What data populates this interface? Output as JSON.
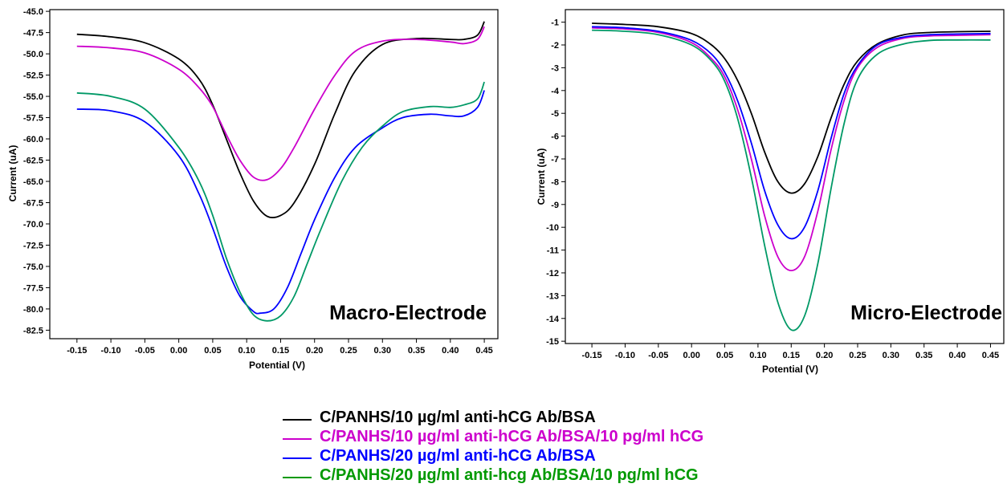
{
  "colors": {
    "c1": "#000000",
    "c2": "#cc00cc",
    "c3": "#0000ff",
    "c4": "#009966",
    "c4_legend": "#009900"
  },
  "chart_data": [
    {
      "type": "line",
      "inset_label": "Macro-Electrode",
      "xlabel": "Potential (V)",
      "ylabel": "Current (uA)",
      "xlim": [
        -0.19,
        0.47
      ],
      "ylim": [
        -83.5,
        -44.8
      ],
      "xticks": [
        -0.15,
        -0.1,
        -0.05,
        0.0,
        0.05,
        0.1,
        0.15,
        0.2,
        0.25,
        0.3,
        0.35,
        0.4,
        0.45
      ],
      "xtick_labels": [
        "-0.15",
        "-0.10",
        "-0.05",
        "0.00",
        "0.05",
        "0.10",
        "0.15",
        "0.20",
        "0.25",
        "0.30",
        "0.35",
        "0.40",
        "0.45"
      ],
      "yticks": [
        -45.0,
        -47.5,
        -50.0,
        -52.5,
        -55.0,
        -57.5,
        -60.0,
        -62.5,
        -65.0,
        -67.5,
        -70.0,
        -72.5,
        -75.0,
        -77.5,
        -80.0,
        -82.5
      ],
      "ytick_labels": [
        "-45.0",
        "-47.5",
        "-50.0",
        "-52.5",
        "-55.0",
        "-57.5",
        "-60.0",
        "-62.5",
        "-65.0",
        "-67.5",
        "-70.0",
        "-72.5",
        "-75.0",
        "-77.5",
        "-80.0",
        "-82.5"
      ],
      "series": [
        {
          "color_key": "c1",
          "x": [
            -0.15,
            -0.1,
            -0.05,
            0.0,
            0.03,
            0.05,
            0.07,
            0.09,
            0.11,
            0.13,
            0.15,
            0.17,
            0.2,
            0.23,
            0.26,
            0.3,
            0.35,
            0.4,
            0.42,
            0.44,
            0.45
          ],
          "y": [
            -47.7,
            -48.0,
            -48.7,
            -50.6,
            -53.0,
            -56.0,
            -60.0,
            -64.0,
            -67.3,
            -69.1,
            -69.0,
            -67.5,
            -63.0,
            -57.0,
            -52.0,
            -48.9,
            -48.2,
            -48.3,
            -48.3,
            -47.8,
            -46.2
          ]
        },
        {
          "color_key": "c2",
          "x": [
            -0.15,
            -0.1,
            -0.05,
            0.0,
            0.03,
            0.05,
            0.07,
            0.09,
            0.11,
            0.13,
            0.15,
            0.17,
            0.2,
            0.23,
            0.26,
            0.3,
            0.35,
            0.4,
            0.42,
            0.44,
            0.45
          ],
          "y": [
            -49.1,
            -49.3,
            -49.9,
            -51.8,
            -54.0,
            -56.2,
            -59.5,
            -62.5,
            -64.5,
            -64.8,
            -63.5,
            -61.0,
            -56.5,
            -52.5,
            -49.7,
            -48.5,
            -48.3,
            -48.6,
            -48.8,
            -48.3,
            -46.8
          ]
        },
        {
          "color_key": "c3",
          "x": [
            -0.15,
            -0.1,
            -0.05,
            0.0,
            0.03,
            0.05,
            0.07,
            0.09,
            0.11,
            0.12,
            0.14,
            0.16,
            0.18,
            0.2,
            0.23,
            0.26,
            0.3,
            0.33,
            0.37,
            0.4,
            0.42,
            0.44,
            0.45
          ],
          "y": [
            -56.5,
            -56.7,
            -58.0,
            -62.0,
            -66.5,
            -70.5,
            -75.0,
            -78.5,
            -80.3,
            -80.5,
            -80.0,
            -77.5,
            -73.5,
            -69.5,
            -64.5,
            -61.0,
            -58.7,
            -57.5,
            -57.1,
            -57.3,
            -57.3,
            -56.3,
            -54.3
          ]
        },
        {
          "color_key": "c4",
          "x": [
            -0.15,
            -0.1,
            -0.05,
            0.0,
            0.03,
            0.05,
            0.07,
            0.09,
            0.11,
            0.13,
            0.15,
            0.17,
            0.19,
            0.21,
            0.24,
            0.27,
            0.3,
            0.33,
            0.37,
            0.4,
            0.42,
            0.44,
            0.45
          ],
          "y": [
            -54.6,
            -55.0,
            -56.5,
            -61.0,
            -65.0,
            -69.0,
            -74.0,
            -78.0,
            -80.7,
            -81.4,
            -80.8,
            -78.5,
            -74.5,
            -70.5,
            -65.0,
            -61.0,
            -58.5,
            -56.8,
            -56.2,
            -56.3,
            -56.0,
            -55.3,
            -53.3
          ]
        }
      ]
    },
    {
      "type": "line",
      "inset_label": "Micro-Electrode",
      "xlabel": "Potential (V)",
      "ylabel": "Current (uA)",
      "xlim": [
        -0.19,
        0.47
      ],
      "ylim": [
        -15.1,
        -0.45
      ],
      "xticks": [
        -0.15,
        -0.1,
        -0.05,
        0.0,
        0.05,
        0.1,
        0.15,
        0.2,
        0.25,
        0.3,
        0.35,
        0.4,
        0.45
      ],
      "xtick_labels": [
        "-0.15",
        "-0.10",
        "-0.05",
        "0.00",
        "0.05",
        "0.10",
        "0.15",
        "0.20",
        "0.25",
        "0.30",
        "0.35",
        "0.40",
        "0.45"
      ],
      "yticks": [
        -1,
        -2,
        -3,
        -4,
        -5,
        -6,
        -7,
        -8,
        -9,
        -10,
        -11,
        -12,
        -13,
        -14,
        -15
      ],
      "ytick_labels": [
        "-1",
        "-2",
        "-3",
        "-4",
        "-5",
        "-6",
        "-7",
        "-8",
        "-9",
        "-10",
        "-11",
        "-12",
        "-13",
        "-14",
        "-15"
      ],
      "series": [
        {
          "color_key": "c1",
          "x": [
            -0.15,
            -0.1,
            -0.05,
            0.0,
            0.03,
            0.05,
            0.07,
            0.09,
            0.11,
            0.13,
            0.15,
            0.17,
            0.19,
            0.21,
            0.23,
            0.25,
            0.28,
            0.32,
            0.36,
            0.4,
            0.45
          ],
          "y": [
            -1.05,
            -1.1,
            -1.2,
            -1.5,
            -2.0,
            -2.6,
            -3.6,
            -5.0,
            -6.7,
            -8.0,
            -8.5,
            -8.1,
            -6.9,
            -5.2,
            -3.7,
            -2.7,
            -1.95,
            -1.55,
            -1.45,
            -1.42,
            -1.4
          ]
        },
        {
          "color_key": "c2",
          "x": [
            -0.15,
            -0.1,
            -0.05,
            0.0,
            0.03,
            0.05,
            0.07,
            0.09,
            0.11,
            0.13,
            0.15,
            0.17,
            0.19,
            0.21,
            0.23,
            0.25,
            0.28,
            0.32,
            0.36,
            0.4,
            0.45
          ],
          "y": [
            -1.25,
            -1.3,
            -1.45,
            -1.9,
            -2.6,
            -3.4,
            -4.9,
            -7.0,
            -9.5,
            -11.3,
            -11.9,
            -11.3,
            -9.3,
            -6.6,
            -4.4,
            -3.0,
            -2.1,
            -1.7,
            -1.6,
            -1.58,
            -1.55
          ]
        },
        {
          "color_key": "c3",
          "x": [
            -0.15,
            -0.1,
            -0.05,
            0.0,
            0.03,
            0.05,
            0.07,
            0.09,
            0.11,
            0.13,
            0.15,
            0.17,
            0.19,
            0.21,
            0.23,
            0.25,
            0.28,
            0.32,
            0.36,
            0.4,
            0.45
          ],
          "y": [
            -1.2,
            -1.25,
            -1.4,
            -1.8,
            -2.4,
            -3.2,
            -4.5,
            -6.3,
            -8.4,
            -9.9,
            -10.5,
            -10.0,
            -8.4,
            -6.1,
            -4.1,
            -2.9,
            -2.0,
            -1.65,
            -1.55,
            -1.52,
            -1.5
          ]
        },
        {
          "color_key": "c4",
          "x": [
            -0.15,
            -0.1,
            -0.05,
            0.0,
            0.03,
            0.05,
            0.07,
            0.09,
            0.11,
            0.13,
            0.15,
            0.17,
            0.19,
            0.21,
            0.23,
            0.25,
            0.28,
            0.32,
            0.36,
            0.4,
            0.45
          ],
          "y": [
            -1.35,
            -1.4,
            -1.55,
            -2.0,
            -2.7,
            -3.6,
            -5.3,
            -7.8,
            -10.8,
            -13.3,
            -14.5,
            -13.9,
            -11.6,
            -8.3,
            -5.4,
            -3.5,
            -2.4,
            -1.95,
            -1.8,
            -1.78,
            -1.78
          ]
        }
      ]
    }
  ],
  "legend": [
    {
      "label": "C/PANHS/10 µg/ml anti-hCG Ab/BSA",
      "color_key": "c1"
    },
    {
      "label": "C/PANHS/10 µg/ml anti-hCG Ab/BSA/10 pg/ml hCG",
      "color_key": "c2"
    },
    {
      "label": "C/PANHS/20 µg/ml anti-hCG Ab/BSA",
      "color_key": "c3"
    },
    {
      "label": "C/PANHS/20 µg/ml anti-hcg Ab/BSA/10 pg/ml hCG",
      "color_key": "c4_legend"
    }
  ]
}
